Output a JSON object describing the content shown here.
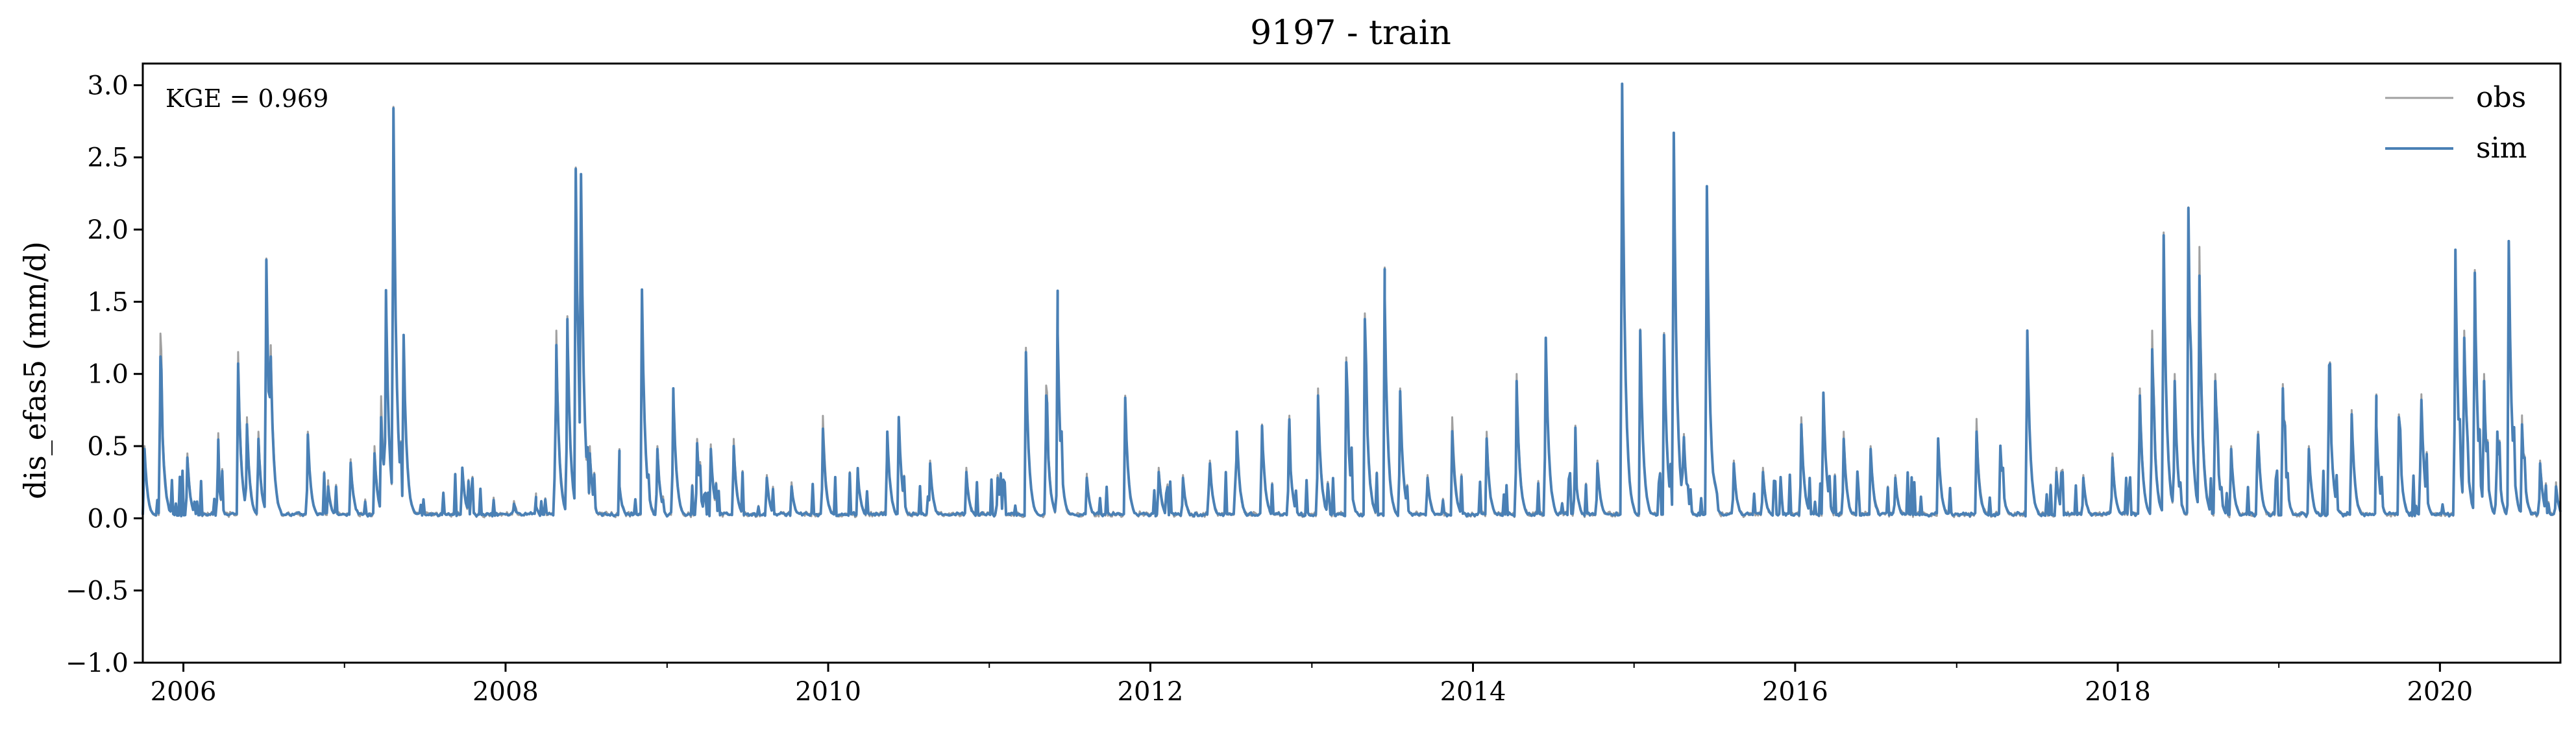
{
  "chart_data": {
    "type": "line",
    "title": "9197 - train",
    "xlabel": "",
    "ylabel": "dis_efas5 (mm/d)",
    "xlim": [
      "2005-10-01",
      "2020-09-30"
    ],
    "ylim": [
      -1.0,
      3.15
    ],
    "yticks": [
      -1.0,
      -0.5,
      0.0,
      0.5,
      1.0,
      1.5,
      2.0,
      2.5,
      3.0
    ],
    "ytick_labels": [
      "−1.0",
      "−0.5",
      "0.0",
      "0.5",
      "1.0",
      "1.5",
      "2.0",
      "2.5",
      "3.0"
    ],
    "xticks": [
      "2006-01-01",
      "2008-01-01",
      "2010-01-01",
      "2012-01-01",
      "2014-01-01",
      "2016-01-01",
      "2018-01-01",
      "2020-01-01"
    ],
    "xtick_labels": [
      "2006",
      "2008",
      "2010",
      "2012",
      "2014",
      "2016",
      "2018",
      "2020"
    ],
    "minor_xticks": [
      "2007-01-01",
      "2009-01-01",
      "2011-01-01",
      "2013-01-01",
      "2015-01-01",
      "2017-01-01",
      "2019-01-01"
    ],
    "grid": false,
    "legend_position": "top-right",
    "annotation": "KGE = 0.969",
    "series": [
      {
        "name": "obs",
        "color": "#a0a0a0",
        "peaks": [
          [
            "2005-10-05",
            0.5
          ],
          [
            "2005-11-10",
            1.28
          ],
          [
            "2006-01-10",
            0.45
          ],
          [
            "2006-03-20",
            0.38
          ],
          [
            "2006-05-05",
            1.15
          ],
          [
            "2006-05-25",
            0.7
          ],
          [
            "2006-06-20",
            0.6
          ],
          [
            "2006-07-08",
            1.8
          ],
          [
            "2006-07-18",
            1.2
          ],
          [
            "2006-10-10",
            0.6
          ],
          [
            "2006-11-25",
            0.25
          ],
          [
            "2007-01-15",
            0.4
          ],
          [
            "2007-03-10",
            0.5
          ],
          [
            "2007-03-25",
            0.84
          ],
          [
            "2007-04-05",
            1.57
          ],
          [
            "2007-04-22",
            2.85
          ],
          [
            "2007-05-15",
            1.25
          ],
          [
            "2007-09-25",
            0.35
          ],
          [
            "2008-01-20",
            0.12
          ],
          [
            "2008-03-10",
            0.1
          ],
          [
            "2008-04-25",
            1.3
          ],
          [
            "2008-05-20",
            1.4
          ],
          [
            "2008-06-08",
            2.42
          ],
          [
            "2008-06-20",
            2.3
          ],
          [
            "2008-07-10",
            0.5
          ],
          [
            "2008-09-15",
            0.25
          ],
          [
            "2008-11-05",
            1.55
          ],
          [
            "2008-12-10",
            0.5
          ],
          [
            "2009-01-15",
            0.9
          ],
          [
            "2009-03-10",
            0.55
          ],
          [
            "2009-04-10",
            0.5
          ],
          [
            "2009-06-01",
            0.55
          ],
          [
            "2009-08-15",
            0.3
          ],
          [
            "2009-10-10",
            0.25
          ],
          [
            "2009-12-20",
            0.71
          ],
          [
            "2010-03-10",
            0.3
          ],
          [
            "2010-05-15",
            0.6
          ],
          [
            "2010-06-10",
            0.7
          ],
          [
            "2010-08-20",
            0.4
          ],
          [
            "2010-11-10",
            0.35
          ],
          [
            "2011-01-20",
            0.3
          ],
          [
            "2011-03-25",
            1.18
          ],
          [
            "2011-05-10",
            0.92
          ],
          [
            "2011-06-05",
            1.25
          ],
          [
            "2011-08-10",
            0.3
          ],
          [
            "2011-11-05",
            0.85
          ],
          [
            "2012-01-20",
            0.35
          ],
          [
            "2012-03-15",
            0.3
          ],
          [
            "2012-05-15",
            0.4
          ],
          [
            "2012-07-15",
            0.6
          ],
          [
            "2012-09-10",
            0.65
          ],
          [
            "2012-11-10",
            0.6
          ],
          [
            "2013-01-15",
            0.9
          ],
          [
            "2013-03-20",
            1.1
          ],
          [
            "2013-05-01",
            1.42
          ],
          [
            "2013-06-15",
            1.52
          ],
          [
            "2013-07-20",
            0.9
          ],
          [
            "2013-09-20",
            0.3
          ],
          [
            "2013-11-15",
            0.7
          ],
          [
            "2014-02-01",
            0.6
          ],
          [
            "2014-04-10",
            1.0
          ],
          [
            "2014-06-15",
            1.25
          ],
          [
            "2014-08-20",
            0.4
          ],
          [
            "2014-10-10",
            0.4
          ],
          [
            "2014-12-05",
            3.0
          ],
          [
            "2015-01-15",
            1.3
          ],
          [
            "2015-03-10",
            1.27
          ],
          [
            "2015-04-01",
            2.67
          ],
          [
            "2015-04-25",
            0.5
          ],
          [
            "2015-06-15",
            2.3
          ],
          [
            "2015-08-15",
            0.4
          ],
          [
            "2015-10-20",
            0.35
          ],
          [
            "2016-01-15",
            0.7
          ],
          [
            "2016-03-05",
            0.86
          ],
          [
            "2016-04-20",
            0.6
          ],
          [
            "2016-06-20",
            0.5
          ],
          [
            "2016-08-15",
            0.3
          ],
          [
            "2016-11-20",
            0.55
          ],
          [
            "2017-02-15",
            0.68
          ],
          [
            "2017-04-10",
            0.5
          ],
          [
            "2017-06-10",
            1.3
          ],
          [
            "2017-08-15",
            0.35
          ],
          [
            "2017-10-15",
            0.3
          ],
          [
            "2017-12-20",
            0.45
          ],
          [
            "2018-02-20",
            0.9
          ],
          [
            "2018-03-20",
            1.3
          ],
          [
            "2018-04-15",
            1.98
          ],
          [
            "2018-05-10",
            1.0
          ],
          [
            "2018-06-10",
            2.15
          ],
          [
            "2018-07-05",
            1.88
          ],
          [
            "2018-08-10",
            1.0
          ],
          [
            "2018-09-15",
            0.5
          ],
          [
            "2018-11-15",
            0.6
          ],
          [
            "2019-01-10",
            0.93
          ],
          [
            "2019-03-10",
            0.5
          ],
          [
            "2019-04-25",
            1.06
          ],
          [
            "2019-06-15",
            0.75
          ],
          [
            "2019-08-10",
            0.65
          ],
          [
            "2019-09-30",
            0.72
          ],
          [
            "2019-11-20",
            0.85
          ],
          [
            "2020-02-05",
            1.86
          ],
          [
            "2020-02-25",
            1.3
          ],
          [
            "2020-03-20",
            1.72
          ],
          [
            "2020-04-10",
            1.0
          ],
          [
            "2020-05-10",
            0.6
          ],
          [
            "2020-06-05",
            1.92
          ],
          [
            "2020-07-05",
            0.7
          ],
          [
            "2020-08-15",
            0.4
          ],
          [
            "2020-09-20",
            0.25
          ]
        ]
      },
      {
        "name": "sim",
        "color": "#4a80b5",
        "peaks": [
          [
            "2005-10-05",
            0.48
          ],
          [
            "2005-11-10",
            1.12
          ],
          [
            "2006-01-10",
            0.42
          ],
          [
            "2006-03-20",
            0.35
          ],
          [
            "2006-05-05",
            1.07
          ],
          [
            "2006-05-25",
            0.65
          ],
          [
            "2006-06-20",
            0.55
          ],
          [
            "2006-07-08",
            1.79
          ],
          [
            "2006-07-18",
            1.12
          ],
          [
            "2006-10-10",
            0.58
          ],
          [
            "2006-11-25",
            0.22
          ],
          [
            "2007-01-15",
            0.38
          ],
          [
            "2007-03-10",
            0.45
          ],
          [
            "2007-03-25",
            0.7
          ],
          [
            "2007-04-05",
            1.58
          ],
          [
            "2007-04-22",
            2.84
          ],
          [
            "2007-05-15",
            1.27
          ],
          [
            "2007-09-25",
            0.35
          ],
          [
            "2008-01-20",
            0.1
          ],
          [
            "2008-03-10",
            0.08
          ],
          [
            "2008-04-25",
            1.2
          ],
          [
            "2008-05-20",
            1.38
          ],
          [
            "2008-06-08",
            2.42
          ],
          [
            "2008-06-20",
            2.38
          ],
          [
            "2008-07-10",
            0.45
          ],
          [
            "2008-09-15",
            0.22
          ],
          [
            "2008-11-05",
            1.58
          ],
          [
            "2008-12-10",
            0.48
          ],
          [
            "2009-01-15",
            0.9
          ],
          [
            "2009-03-10",
            0.52
          ],
          [
            "2009-04-10",
            0.48
          ],
          [
            "2009-06-01",
            0.5
          ],
          [
            "2009-08-15",
            0.28
          ],
          [
            "2009-10-10",
            0.22
          ],
          [
            "2009-12-20",
            0.62
          ],
          [
            "2010-03-10",
            0.28
          ],
          [
            "2010-05-15",
            0.6
          ],
          [
            "2010-06-10",
            0.7
          ],
          [
            "2010-08-20",
            0.38
          ],
          [
            "2010-11-10",
            0.32
          ],
          [
            "2011-01-20",
            0.28
          ],
          [
            "2011-03-25",
            1.15
          ],
          [
            "2011-05-10",
            0.85
          ],
          [
            "2011-06-05",
            1.28
          ],
          [
            "2011-08-10",
            0.28
          ],
          [
            "2011-11-05",
            0.83
          ],
          [
            "2012-01-20",
            0.32
          ],
          [
            "2012-03-15",
            0.28
          ],
          [
            "2012-05-15",
            0.38
          ],
          [
            "2012-07-15",
            0.6
          ],
          [
            "2012-09-10",
            0.64
          ],
          [
            "2012-11-10",
            0.58
          ],
          [
            "2013-01-15",
            0.85
          ],
          [
            "2013-03-20",
            1.08
          ],
          [
            "2013-05-01",
            1.38
          ],
          [
            "2013-06-15",
            1.52
          ],
          [
            "2013-07-20",
            0.88
          ],
          [
            "2013-09-20",
            0.28
          ],
          [
            "2013-11-15",
            0.6
          ],
          [
            "2014-02-01",
            0.55
          ],
          [
            "2014-04-10",
            0.95
          ],
          [
            "2014-06-15",
            1.25
          ],
          [
            "2014-08-20",
            0.38
          ],
          [
            "2014-10-10",
            0.38
          ],
          [
            "2014-12-05",
            3.01
          ],
          [
            "2015-01-15",
            1.3
          ],
          [
            "2015-03-10",
            1.27
          ],
          [
            "2015-04-01",
            2.67
          ],
          [
            "2015-04-25",
            0.48
          ],
          [
            "2015-06-15",
            2.3
          ],
          [
            "2015-08-15",
            0.38
          ],
          [
            "2015-10-20",
            0.32
          ],
          [
            "2016-01-15",
            0.65
          ],
          [
            "2016-03-05",
            0.87
          ],
          [
            "2016-04-20",
            0.55
          ],
          [
            "2016-06-20",
            0.48
          ],
          [
            "2016-08-15",
            0.28
          ],
          [
            "2016-11-20",
            0.55
          ],
          [
            "2017-02-15",
            0.6
          ],
          [
            "2017-04-10",
            0.5
          ],
          [
            "2017-06-10",
            1.3
          ],
          [
            "2017-08-15",
            0.32
          ],
          [
            "2017-10-15",
            0.28
          ],
          [
            "2017-12-20",
            0.42
          ],
          [
            "2018-02-20",
            0.85
          ],
          [
            "2018-03-20",
            1.17
          ],
          [
            "2018-04-15",
            1.96
          ],
          [
            "2018-05-10",
            0.95
          ],
          [
            "2018-06-10",
            2.15
          ],
          [
            "2018-07-05",
            1.68
          ],
          [
            "2018-08-10",
            0.95
          ],
          [
            "2018-09-15",
            0.48
          ],
          [
            "2018-11-15",
            0.58
          ],
          [
            "2019-01-10",
            0.9
          ],
          [
            "2019-03-10",
            0.48
          ],
          [
            "2019-04-25",
            1.06
          ],
          [
            "2019-06-15",
            0.72
          ],
          [
            "2019-08-10",
            0.64
          ],
          [
            "2019-09-30",
            0.7
          ],
          [
            "2019-11-20",
            0.82
          ],
          [
            "2020-02-05",
            1.86
          ],
          [
            "2020-02-25",
            1.25
          ],
          [
            "2020-03-20",
            1.7
          ],
          [
            "2020-04-10",
            0.95
          ],
          [
            "2020-05-10",
            0.6
          ],
          [
            "2020-06-05",
            1.92
          ],
          [
            "2020-07-05",
            0.65
          ],
          [
            "2020-08-15",
            0.38
          ],
          [
            "2020-09-20",
            0.22
          ]
        ]
      }
    ]
  }
}
